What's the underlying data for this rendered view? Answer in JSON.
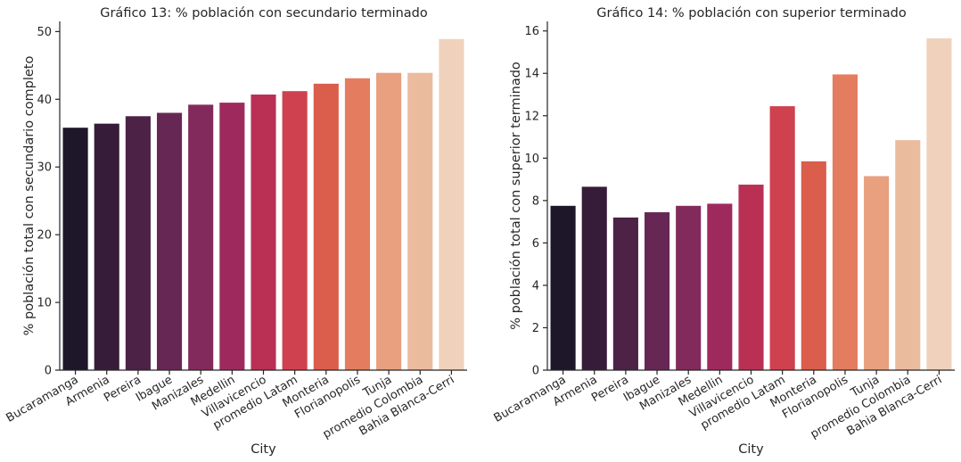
{
  "chart_data": [
    {
      "type": "bar",
      "title": "Gráfico 13: % población con secundario terminado",
      "xlabel": "City",
      "ylabel": "% población total con secundario completo",
      "categories": [
        "Bucaramanga",
        "Armenia",
        "Pereira",
        "Ibague",
        "Manizales",
        "Medellin",
        "Villavicencio",
        "promedio Latam",
        "Monteria",
        "Florianopolis",
        "Tunja",
        "promedio Colombia",
        "Bahia Blanca-Cerri"
      ],
      "values": [
        35.8,
        36.4,
        37.5,
        38.0,
        39.2,
        39.5,
        40.7,
        41.2,
        42.3,
        43.1,
        43.9,
        43.9,
        48.9
      ],
      "ylim": [
        0,
        51.5
      ],
      "yticks": [
        0,
        10,
        20,
        30,
        40,
        50
      ],
      "grid": false
    },
    {
      "type": "bar",
      "title": "Gráfico 14: % población con superior terminado",
      "xlabel": "City",
      "ylabel": "% población total con superior terminado",
      "categories": [
        "Bucaramanga",
        "Armenia",
        "Pereira",
        "Ibague",
        "Manizales",
        "Medellin",
        "Villavicencio",
        "promedio Latam",
        "Monteria",
        "Florianopolis",
        "Tunja",
        "promedio Colombia",
        "Bahia Blanca-Cerri"
      ],
      "values": [
        7.75,
        8.65,
        7.2,
        7.45,
        7.75,
        7.85,
        8.75,
        12.45,
        9.85,
        13.95,
        9.15,
        10.85,
        15.65
      ],
      "ylim": [
        0,
        16.45
      ],
      "yticks": [
        0,
        2,
        4,
        6,
        8,
        10,
        12,
        14,
        16
      ],
      "grid": false
    }
  ],
  "palette": [
    "#1e1629",
    "#361c38",
    "#4d2247",
    "#672754",
    "#832a5c",
    "#9e2a5d",
    "#ba3055",
    "#d0414f",
    "#db5d4c",
    "#e47d5f",
    "#e8a07f",
    "#ebbb9e",
    "#f0d2bc"
  ]
}
